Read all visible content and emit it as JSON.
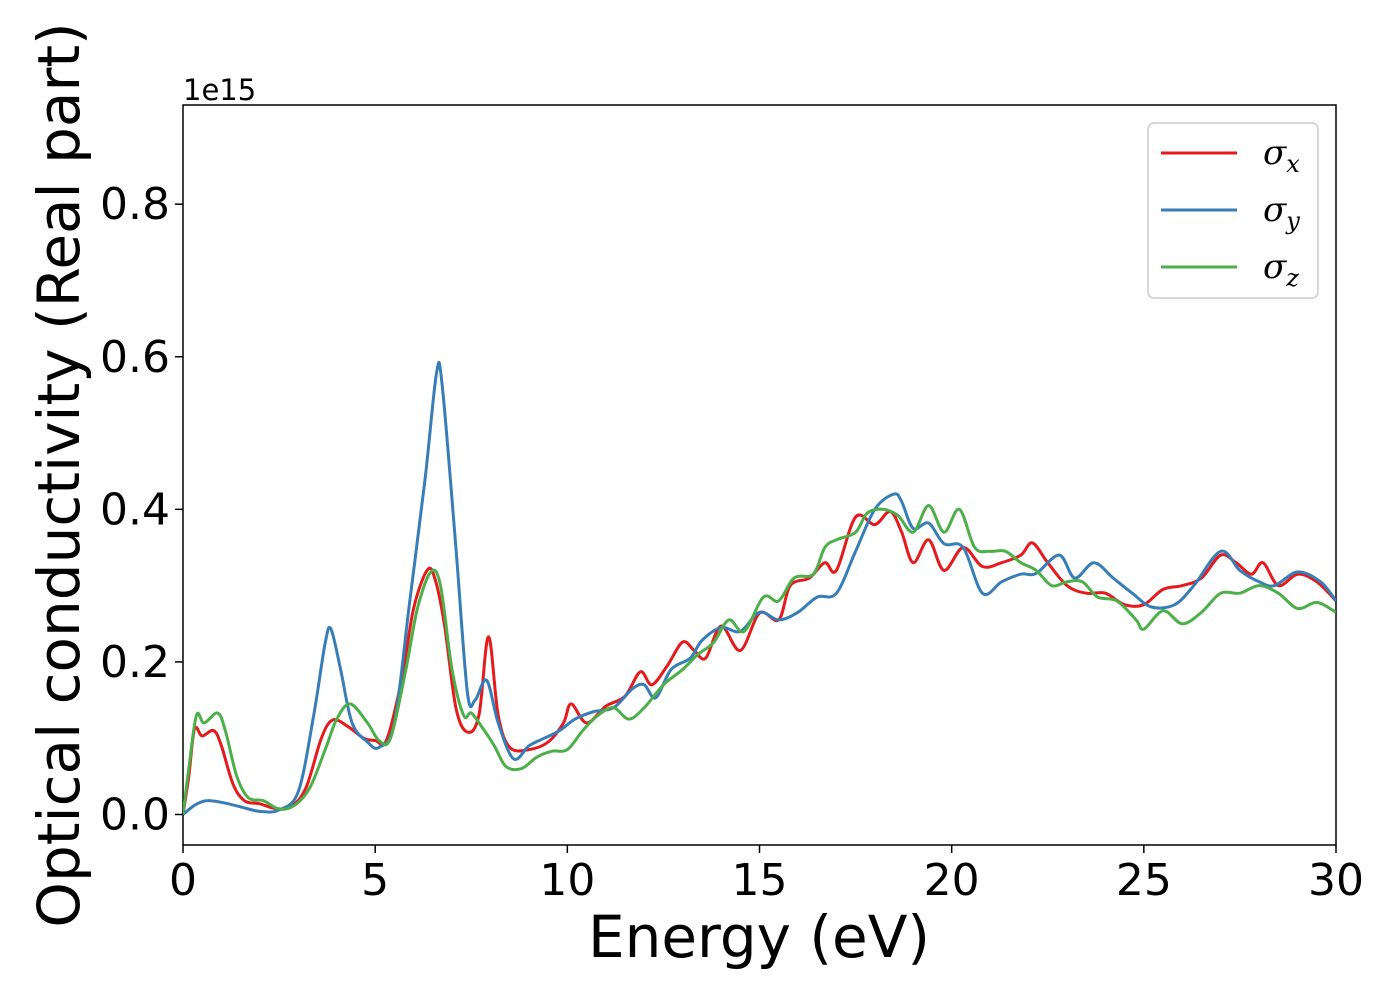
{
  "chart_data": {
    "type": "line",
    "xlabel": "Energy (eV)",
    "ylabel": "Optical conductivity (Real part)",
    "y_offset_label": "1e15",
    "xlim": [
      0,
      30
    ],
    "ylim": [
      -0.04,
      0.93
    ],
    "x_ticks": [
      0,
      5,
      10,
      15,
      20,
      25,
      30
    ],
    "x_tick_labels": [
      "0",
      "5",
      "10",
      "15",
      "20",
      "25",
      "30"
    ],
    "y_ticks": [
      0.0,
      0.2,
      0.4,
      0.6,
      0.8
    ],
    "y_tick_labels": [
      "0.0",
      "0.2",
      "0.4",
      "0.6",
      "0.8"
    ],
    "grid": false,
    "legend_position": "top-right",
    "series": [
      {
        "name_symbol": "σ",
        "name_subscript": "x",
        "color": "#e41a1c",
        "points": [
          [
            0,
            0
          ],
          [
            0.15,
            0.05
          ],
          [
            0.3,
            0.112
          ],
          [
            0.5,
            0.103
          ],
          [
            0.8,
            0.11
          ],
          [
            1.0,
            0.09
          ],
          [
            1.3,
            0.04
          ],
          [
            1.6,
            0.018
          ],
          [
            2.0,
            0.014
          ],
          [
            2.4,
            0.008
          ],
          [
            2.8,
            0.01
          ],
          [
            3.2,
            0.035
          ],
          [
            3.6,
            0.1
          ],
          [
            3.9,
            0.124
          ],
          [
            4.3,
            0.115
          ],
          [
            4.7,
            0.1
          ],
          [
            5.0,
            0.097
          ],
          [
            5.3,
            0.098
          ],
          [
            5.7,
            0.18
          ],
          [
            6.0,
            0.27
          ],
          [
            6.35,
            0.32
          ],
          [
            6.55,
            0.31
          ],
          [
            6.8,
            0.25
          ],
          [
            7.1,
            0.14
          ],
          [
            7.4,
            0.108
          ],
          [
            7.7,
            0.13
          ],
          [
            7.95,
            0.233
          ],
          [
            8.2,
            0.13
          ],
          [
            8.5,
            0.088
          ],
          [
            9.0,
            0.085
          ],
          [
            9.5,
            0.095
          ],
          [
            9.9,
            0.12
          ],
          [
            10.1,
            0.145
          ],
          [
            10.5,
            0.12
          ],
          [
            11.0,
            0.142
          ],
          [
            11.5,
            0.155
          ],
          [
            11.9,
            0.187
          ],
          [
            12.2,
            0.17
          ],
          [
            12.6,
            0.195
          ],
          [
            13.0,
            0.226
          ],
          [
            13.3,
            0.215
          ],
          [
            13.6,
            0.205
          ],
          [
            14.0,
            0.247
          ],
          [
            14.5,
            0.215
          ],
          [
            15.0,
            0.264
          ],
          [
            15.5,
            0.255
          ],
          [
            15.8,
            0.3
          ],
          [
            16.3,
            0.31
          ],
          [
            16.7,
            0.33
          ],
          [
            17.0,
            0.32
          ],
          [
            17.5,
            0.39
          ],
          [
            18.0,
            0.38
          ],
          [
            18.4,
            0.397
          ],
          [
            18.7,
            0.37
          ],
          [
            19.0,
            0.33
          ],
          [
            19.4,
            0.36
          ],
          [
            19.8,
            0.32
          ],
          [
            20.3,
            0.35
          ],
          [
            20.8,
            0.325
          ],
          [
            21.3,
            0.33
          ],
          [
            21.8,
            0.34
          ],
          [
            22.1,
            0.356
          ],
          [
            22.5,
            0.33
          ],
          [
            23.0,
            0.3
          ],
          [
            23.5,
            0.29
          ],
          [
            24.0,
            0.29
          ],
          [
            24.5,
            0.275
          ],
          [
            25.0,
            0.275
          ],
          [
            25.5,
            0.295
          ],
          [
            26.0,
            0.3
          ],
          [
            26.5,
            0.31
          ],
          [
            27.0,
            0.34
          ],
          [
            27.4,
            0.33
          ],
          [
            27.8,
            0.315
          ],
          [
            28.1,
            0.33
          ],
          [
            28.5,
            0.3
          ],
          [
            29.0,
            0.315
          ],
          [
            29.5,
            0.305
          ],
          [
            30.0,
            0.28
          ]
        ]
      },
      {
        "name_symbol": "σ",
        "name_subscript": "y",
        "color": "#377eb8",
        "points": [
          [
            0,
            0
          ],
          [
            0.3,
            0.012
          ],
          [
            0.6,
            0.018
          ],
          [
            1.0,
            0.016
          ],
          [
            1.5,
            0.01
          ],
          [
            2.0,
            0.004
          ],
          [
            2.5,
            0.006
          ],
          [
            3.0,
            0.03
          ],
          [
            3.4,
            0.13
          ],
          [
            3.7,
            0.225
          ],
          [
            3.85,
            0.243
          ],
          [
            4.1,
            0.19
          ],
          [
            4.4,
            0.12
          ],
          [
            4.8,
            0.095
          ],
          [
            5.1,
            0.088
          ],
          [
            5.5,
            0.12
          ],
          [
            5.9,
            0.28
          ],
          [
            6.3,
            0.44
          ],
          [
            6.6,
            0.58
          ],
          [
            6.75,
            0.56
          ],
          [
            7.1,
            0.35
          ],
          [
            7.4,
            0.16
          ],
          [
            7.6,
            0.15
          ],
          [
            7.9,
            0.176
          ],
          [
            8.2,
            0.12
          ],
          [
            8.6,
            0.073
          ],
          [
            9.0,
            0.09
          ],
          [
            9.4,
            0.1
          ],
          [
            9.8,
            0.11
          ],
          [
            10.2,
            0.125
          ],
          [
            10.7,
            0.135
          ],
          [
            11.2,
            0.14
          ],
          [
            11.7,
            0.165
          ],
          [
            12.0,
            0.17
          ],
          [
            12.3,
            0.153
          ],
          [
            12.7,
            0.19
          ],
          [
            13.2,
            0.205
          ],
          [
            13.5,
            0.228
          ],
          [
            14.0,
            0.245
          ],
          [
            14.5,
            0.24
          ],
          [
            15.0,
            0.265
          ],
          [
            15.5,
            0.255
          ],
          [
            16.0,
            0.265
          ],
          [
            16.5,
            0.285
          ],
          [
            17.0,
            0.29
          ],
          [
            17.5,
            0.345
          ],
          [
            18.0,
            0.4
          ],
          [
            18.5,
            0.42
          ],
          [
            18.7,
            0.41
          ],
          [
            19.0,
            0.375
          ],
          [
            19.4,
            0.382
          ],
          [
            19.8,
            0.355
          ],
          [
            20.3,
            0.35
          ],
          [
            20.8,
            0.29
          ],
          [
            21.3,
            0.305
          ],
          [
            21.8,
            0.315
          ],
          [
            22.2,
            0.316
          ],
          [
            22.8,
            0.34
          ],
          [
            23.2,
            0.31
          ],
          [
            23.7,
            0.33
          ],
          [
            24.2,
            0.31
          ],
          [
            24.7,
            0.29
          ],
          [
            25.2,
            0.272
          ],
          [
            25.8,
            0.275
          ],
          [
            26.3,
            0.3
          ],
          [
            27.0,
            0.345
          ],
          [
            27.5,
            0.32
          ],
          [
            28.0,
            0.305
          ],
          [
            28.4,
            0.3
          ],
          [
            29.0,
            0.318
          ],
          [
            29.6,
            0.305
          ],
          [
            30.0,
            0.28
          ]
        ]
      },
      {
        "name_symbol": "σ",
        "name_subscript": "z",
        "color": "#4daf4a",
        "points": [
          [
            0,
            0
          ],
          [
            0.15,
            0.06
          ],
          [
            0.35,
            0.13
          ],
          [
            0.55,
            0.12
          ],
          [
            0.9,
            0.133
          ],
          [
            1.1,
            0.11
          ],
          [
            1.4,
            0.05
          ],
          [
            1.7,
            0.022
          ],
          [
            2.1,
            0.018
          ],
          [
            2.5,
            0.007
          ],
          [
            2.9,
            0.012
          ],
          [
            3.3,
            0.035
          ],
          [
            3.7,
            0.085
          ],
          [
            4.0,
            0.125
          ],
          [
            4.35,
            0.145
          ],
          [
            4.8,
            0.12
          ],
          [
            5.1,
            0.097
          ],
          [
            5.4,
            0.1
          ],
          [
            5.8,
            0.19
          ],
          [
            6.1,
            0.27
          ],
          [
            6.45,
            0.318
          ],
          [
            6.7,
            0.3
          ],
          [
            7.0,
            0.19
          ],
          [
            7.3,
            0.13
          ],
          [
            7.5,
            0.133
          ],
          [
            7.8,
            0.113
          ],
          [
            8.1,
            0.09
          ],
          [
            8.4,
            0.063
          ],
          [
            8.8,
            0.06
          ],
          [
            9.2,
            0.075
          ],
          [
            9.6,
            0.083
          ],
          [
            10.0,
            0.085
          ],
          [
            10.4,
            0.11
          ],
          [
            10.8,
            0.13
          ],
          [
            11.2,
            0.14
          ],
          [
            11.6,
            0.125
          ],
          [
            12.0,
            0.14
          ],
          [
            12.5,
            0.17
          ],
          [
            13.0,
            0.19
          ],
          [
            13.4,
            0.21
          ],
          [
            13.8,
            0.225
          ],
          [
            14.2,
            0.255
          ],
          [
            14.6,
            0.24
          ],
          [
            15.1,
            0.285
          ],
          [
            15.5,
            0.28
          ],
          [
            15.9,
            0.31
          ],
          [
            16.4,
            0.315
          ],
          [
            16.7,
            0.35
          ],
          [
            17.0,
            0.36
          ],
          [
            17.5,
            0.37
          ],
          [
            17.8,
            0.395
          ],
          [
            18.2,
            0.4
          ],
          [
            18.6,
            0.392
          ],
          [
            19.0,
            0.37
          ],
          [
            19.4,
            0.405
          ],
          [
            19.8,
            0.37
          ],
          [
            20.2,
            0.4
          ],
          [
            20.6,
            0.35
          ],
          [
            21.0,
            0.345
          ],
          [
            21.4,
            0.345
          ],
          [
            21.8,
            0.33
          ],
          [
            22.2,
            0.32
          ],
          [
            22.6,
            0.3
          ],
          [
            23.0,
            0.305
          ],
          [
            23.4,
            0.305
          ],
          [
            23.8,
            0.285
          ],
          [
            24.3,
            0.28
          ],
          [
            24.8,
            0.255
          ],
          [
            25.0,
            0.243
          ],
          [
            25.5,
            0.267
          ],
          [
            26.0,
            0.25
          ],
          [
            26.5,
            0.265
          ],
          [
            27.0,
            0.29
          ],
          [
            27.5,
            0.29
          ],
          [
            28.0,
            0.3
          ],
          [
            28.5,
            0.29
          ],
          [
            29.0,
            0.27
          ],
          [
            29.5,
            0.278
          ],
          [
            30.0,
            0.265
          ]
        ]
      }
    ]
  }
}
